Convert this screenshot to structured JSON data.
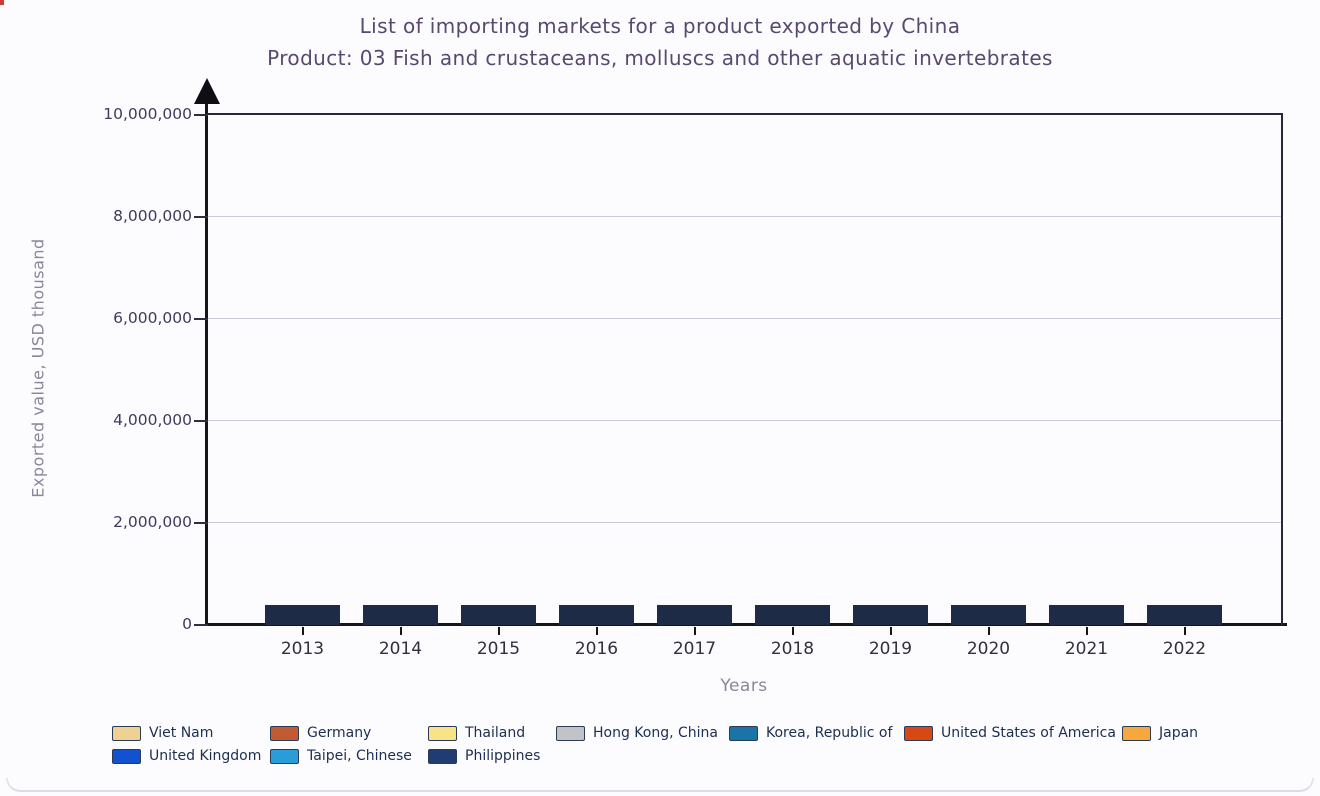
{
  "title": "List of importing markets for a product exported by China",
  "subtitle": "Product: 03 Fish and crustaceans, molluscs and other aquatic invertebrates",
  "axes": {
    "x_label": "Years",
    "y_label": "Exported value, USD thousand",
    "y_ticks": [
      "0",
      "2,000,000",
      "4,000,000",
      "6,000,000",
      "8,000,000",
      "10,000,000"
    ]
  },
  "colors": {
    "grid": "#c9cbd8",
    "axis": "#15151c",
    "plot_border": "#26263f",
    "title_text": "#57496f",
    "muted_text": "#8b8599",
    "legend_text": "#1c2e52"
  },
  "chart_data": {
    "type": "bar",
    "stacked": true,
    "title": "List of importing markets for a product exported by China",
    "subtitle": "Product: 03 Fish and crustaceans, molluscs and other aquatic invertebrates",
    "xlabel": "Years",
    "ylabel": "Exported value, USD thousand",
    "ylim": [
      0,
      10000000
    ],
    "grid": "horizontal",
    "legend_position": "bottom",
    "categories": [
      "2013",
      "2014",
      "2015",
      "2016",
      "2017",
      "2018",
      "2019",
      "2020",
      "2021",
      "2022"
    ],
    "series": [
      {
        "name": "Japan",
        "color": "#F6A83C",
        "values": [
          2070,
          2320,
          1890,
          1990,
          2280,
          2285,
          1990,
          1730,
          1730,
          1990
        ]
      },
      {
        "name": "United States of America",
        "color": "#D94713",
        "values": [
          1670,
          1630,
          1770,
          1750,
          1515,
          1555,
          1420,
          1120,
          1120,
          1360
        ]
      },
      {
        "name": "Korea, Republic of",
        "color": "#1B74A8",
        "values": [
          1140,
          1280,
          1380,
          1340,
          1240,
          1575,
          1340,
          1280,
          1340,
          1240
        ]
      },
      {
        "name": "Hong Kong, China",
        "color": "#C2C3C7",
        "values": [
          1520,
          1850,
          1400,
          1340,
          1260,
          1005,
          925,
          945,
          1180,
          1240
        ]
      },
      {
        "name": "Philippines",
        "color": "#203C70",
        "values": [
          295,
          395,
          470,
          530,
          610,
          670,
          590,
          550,
          785,
          865
        ]
      },
      {
        "name": "Thailand",
        "color": "#FAE385",
        "values": [
          395,
          690,
          965,
          925,
          630,
          550,
          650,
          825,
          530,
          490
        ]
      },
      {
        "name": "Taipei, Chinese",
        "color": "#2A9CD8",
        "values": [
          810,
          885,
          1005,
          985,
          825,
          925,
          730,
          550,
          490,
          650
        ]
      },
      {
        "name": "Germany",
        "color": "#C25B33",
        "values": [
          430,
          415,
          435,
          415,
          315,
          395,
          590,
          375,
          255,
          435
        ]
      },
      {
        "name": "United Kingdom",
        "color": "#1252D1",
        "values": [
          295,
          335,
          295,
          315,
          375,
          355,
          395,
          355,
          395,
          415
        ]
      },
      {
        "name": "Viet Nam",
        "color": "#EFD192",
        "values": [
          100,
          100,
          80,
          120,
          120,
          195,
          255,
          295,
          335,
          375
        ]
      }
    ],
    "values_unit": "USD thousand",
    "legend_rows": [
      [
        "Viet Nam",
        "Germany",
        "Thailand",
        "Hong Kong, China",
        "Korea, Republic of",
        "United States of America",
        "Japan"
      ],
      [
        "United Kingdom",
        "Taipei, Chinese",
        "Philippines"
      ]
    ]
  }
}
